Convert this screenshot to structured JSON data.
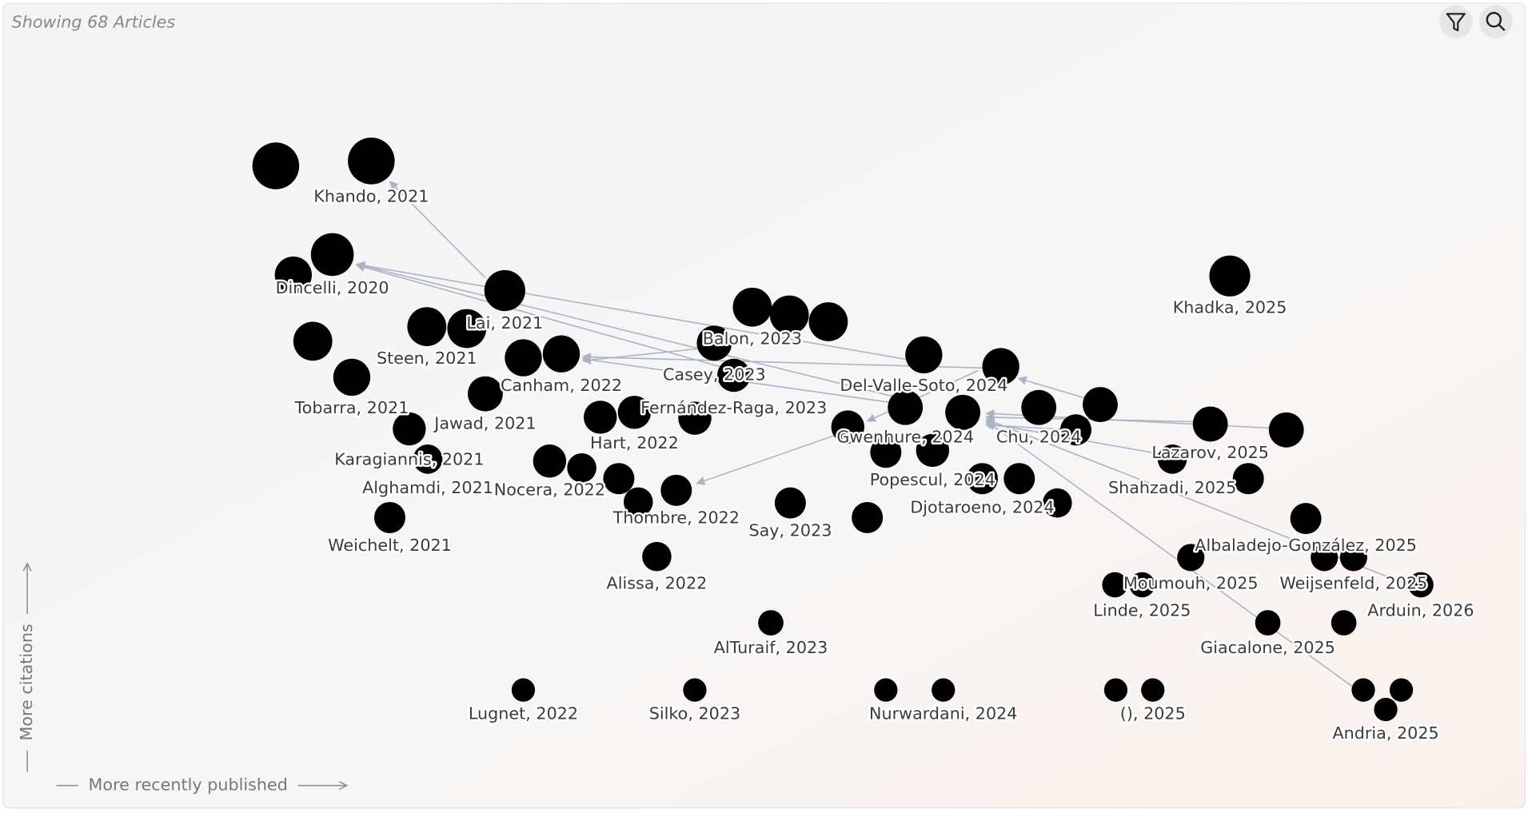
{
  "header": {
    "status": "Showing 68 Articles"
  },
  "axes": {
    "y_label": "More citations",
    "x_label": "More recently published"
  },
  "nodes": [
    {
      "label": "Khando, 2021"
    },
    {
      "label": "Dincelli, 2020"
    },
    {
      "label": "Lai, 2021"
    },
    {
      "label": "Steen, 2021"
    },
    {
      "label": "Balon, 2023"
    },
    {
      "label": "Khadka, 2025"
    },
    {
      "label": "Casey, 2023"
    },
    {
      "label": "Canham, 2022"
    },
    {
      "label": "Del-Valle-Soto, 2024"
    },
    {
      "label": "Tobarra, 2021"
    },
    {
      "label": "Jawad, 2021"
    },
    {
      "label": "Fernández-Raga, 2023"
    },
    {
      "label": "Hart, 2022"
    },
    {
      "label": "Gwenhure, 2024"
    },
    {
      "label": "Chu, 2024"
    },
    {
      "label": "Karagiannis, 2021"
    },
    {
      "label": "Lazarov, 2025"
    },
    {
      "label": "Alghamdi, 2021"
    },
    {
      "label": "Nocera, 2022"
    },
    {
      "label": "Popescul, 2024"
    },
    {
      "label": "Shahzadi, 2025"
    },
    {
      "label": "Djotaroeno, 2024"
    },
    {
      "label": "Thombre, 2022"
    },
    {
      "label": "Say, 2023"
    },
    {
      "label": "Weichelt, 2021"
    },
    {
      "label": "Albaladejo-González, 2025"
    },
    {
      "label": "Alissa, 2022"
    },
    {
      "label": "Moumouh, 2025"
    },
    {
      "label": "Weijsenfeld, 2025"
    },
    {
      "label": "Linde, 2025"
    },
    {
      "label": "Arduin, 2026"
    },
    {
      "label": "AlTuraif, 2023"
    },
    {
      "label": "Giacalone, 2025"
    },
    {
      "label": "Lugnet, 2022"
    },
    {
      "label": "Silko, 2023"
    },
    {
      "label": "Nurwardani, 2024"
    },
    {
      "label": "(), 2025"
    },
    {
      "label": "Andria, 2025"
    }
  ]
}
